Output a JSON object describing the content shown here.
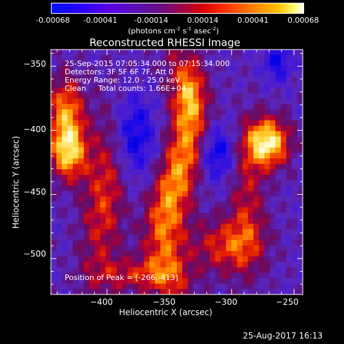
{
  "colorbar": {
    "tick_labels": [
      "-0.00068",
      "-0.00041",
      "-0.00014",
      "0.00014",
      "0.00041",
      "0.00068"
    ],
    "unit_label_parts": [
      "(photons cm",
      "-2",
      " s",
      "-1",
      " asec",
      "-2",
      ")"
    ]
  },
  "title": "Reconstructed RHESSI Image",
  "annotations": {
    "line1": "25-Sep-2015 07:05:34.000 to 07:15:34.000",
    "line2": "Detectors: 3F 5F 6F 7F, Att 0",
    "line3": "Energy Range: 12.0 - 25.0 keV",
    "line4": "Clean     Total counts: 1.66E+04",
    "peak": "Position of Peak = [-266,-413]"
  },
  "x_axis": {
    "label": "Heliocentric X (arcsec)",
    "ticks": [
      -400,
      -350,
      -300,
      -250
    ],
    "tick_labels": [
      "−400",
      "−350",
      "−300",
      "−250"
    ],
    "range": [
      -445,
      -243
    ]
  },
  "y_axis": {
    "label": "Heliocentric Y (arcsec)",
    "ticks": [
      -350,
      -400,
      -450,
      -500
    ],
    "tick_labels": [
      "−350",
      "−400",
      "−450",
      "−500"
    ],
    "range": [
      -528,
      -337
    ]
  },
  "footer_date": "25-Aug-2017 16:13",
  "colors": {
    "background": "#000000",
    "colormap": [
      "#0000ff",
      "#2b00ff",
      "#5a00e0",
      "#5a1aa8",
      "#7a1070",
      "#b4003a",
      "#e01800",
      "#ff5a00",
      "#ff9a00",
      "#ffd040",
      "#ffffe0"
    ]
  }
}
